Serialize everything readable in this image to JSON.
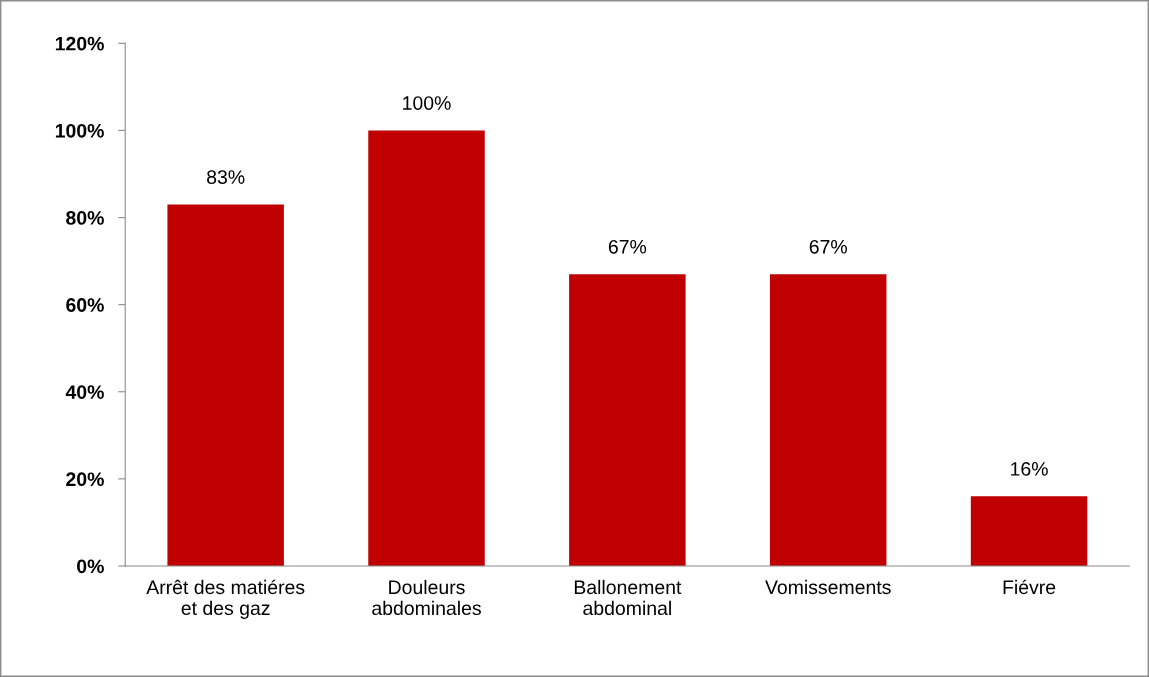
{
  "chart_data": {
    "type": "bar",
    "categories": [
      "Arrêt des matiéres\net des gaz",
      "Douleurs\nabdominales",
      "Ballonement\nabdominal",
      "Vomissements",
      "Fiévre"
    ],
    "values": [
      83,
      100,
      67,
      67,
      16
    ],
    "value_labels": [
      "83%",
      "100%",
      "67%",
      "67%",
      "16%"
    ],
    "color": "#c00000",
    "ylim": [
      0,
      120
    ],
    "yticks": [
      {
        "value": 0,
        "label": "0%"
      },
      {
        "value": 20,
        "label": "20%"
      },
      {
        "value": 40,
        "label": "40%"
      },
      {
        "value": 60,
        "label": "60%"
      },
      {
        "value": 80,
        "label": "80%"
      },
      {
        "value": 100,
        "label": "100%"
      },
      {
        "value": 120,
        "label": "120%"
      }
    ],
    "grid": false,
    "legend": false
  }
}
